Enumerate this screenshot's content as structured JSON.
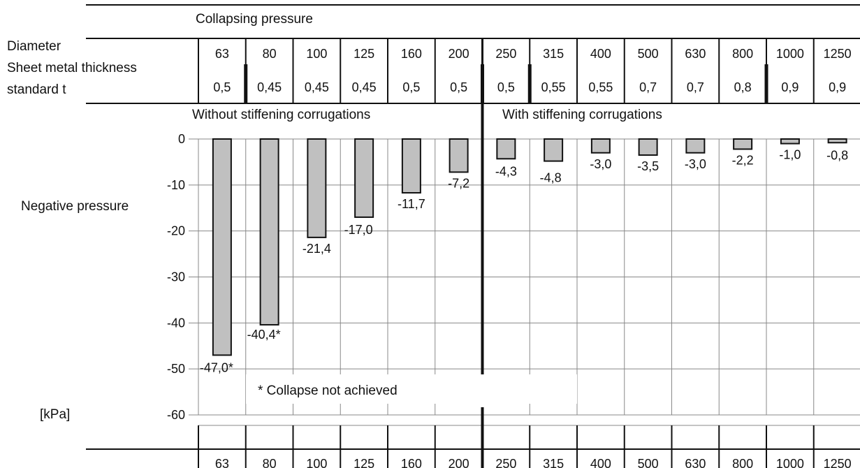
{
  "header": {
    "title": "Collapsing pressure",
    "row_labels": [
      "Diameter",
      "Sheet metal thickness",
      "standard t"
    ]
  },
  "sections": {
    "left": "Without stiffening corrugations",
    "right": "With stiffening corrugations"
  },
  "axis": {
    "ylabel": "Negative pressure",
    "unit": "[kPa]",
    "ticks": [
      "0",
      "-10",
      "-20",
      "-30",
      "-40",
      "-50",
      "-60"
    ]
  },
  "note": "* Collapse not achieved",
  "colors": {
    "bar_fill": "#c0c0c0",
    "bar_stroke": "#111111",
    "grid": "#888888",
    "text": "#111111"
  },
  "chart_data": {
    "type": "bar",
    "title": "Collapsing pressure",
    "categories": [
      "63",
      "80",
      "100",
      "125",
      "160",
      "200",
      "250",
      "315",
      "400",
      "500",
      "630",
      "800",
      "1000",
      "1250"
    ],
    "thickness": [
      "0,5",
      "0,45",
      "0,45",
      "0,45",
      "0,5",
      "0,5",
      "0,5",
      "0,55",
      "0,55",
      "0,7",
      "0,7",
      "0,8",
      "0,9",
      "0,9"
    ],
    "values": [
      -47.0,
      -40.4,
      -21.4,
      -17.0,
      -11.7,
      -7.2,
      -4.3,
      -4.8,
      -3.0,
      -3.5,
      -3.0,
      -2.2,
      -1.0,
      -0.8
    ],
    "labels": [
      "-47,0",
      "-40,4",
      "-21,4",
      "-17,0",
      "-11,7",
      "-7,2",
      "-4,3",
      "-4,8",
      "-3,0",
      "-3,5",
      "-3,0",
      "-2,2",
      "-1,0",
      "-0,8"
    ],
    "collapse_not_achieved": [
      true,
      true,
      false,
      false,
      false,
      false,
      false,
      false,
      false,
      false,
      false,
      false,
      false,
      false
    ],
    "ylabel": "Negative pressure",
    "yunit": "[kPa]",
    "ylim": [
      -60,
      0
    ],
    "grid": true,
    "stiffening_from_category": "250"
  }
}
